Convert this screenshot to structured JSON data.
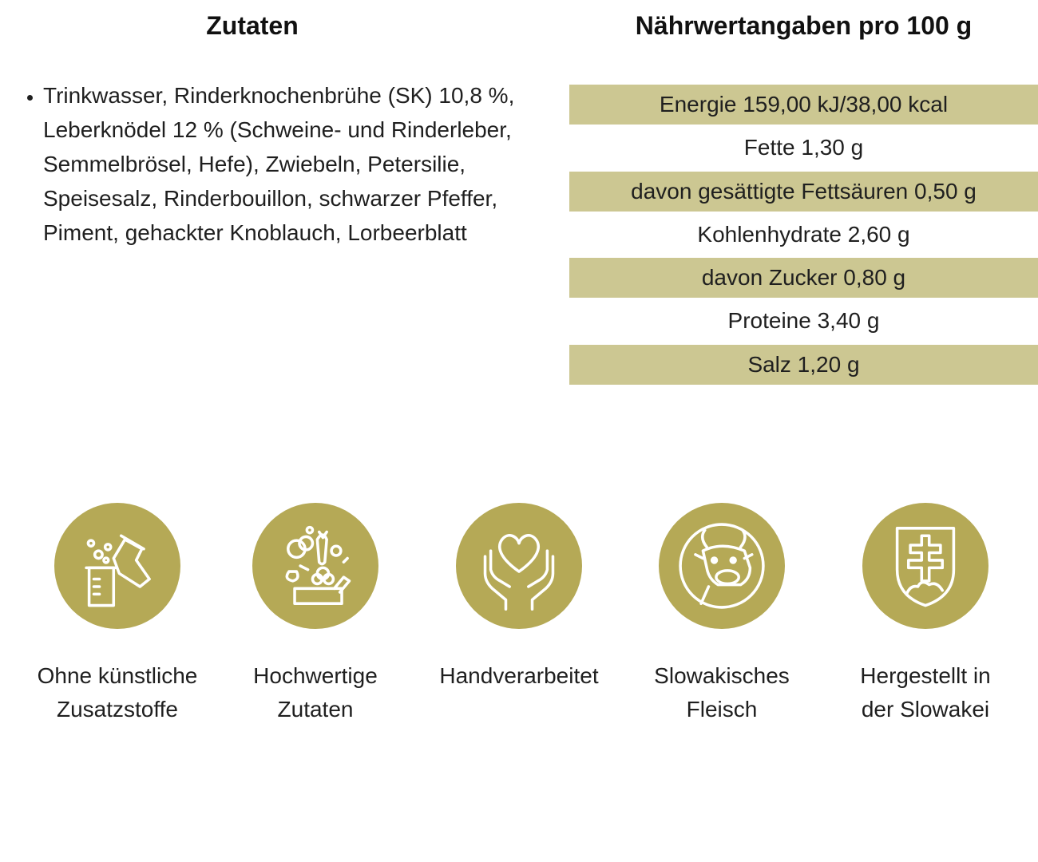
{
  "ingredients": {
    "title": "Zutaten",
    "items": [
      "Trinkwasser, Rinderknochenbrühe (SK) 10,8 %, Leberknödel 12 % (Schweine- und Rinderleber, Semmelbrösel, Hefe), Zwiebeln, Petersilie, Speisesalz, Rinderbouillon, schwarzer Pfeffer, Piment, gehackter Knoblauch, Lorbeerblatt"
    ]
  },
  "nutrition": {
    "title": "Nährwertangaben pro 100 g",
    "shade_color": "#ccc792",
    "rows": [
      "Energie 159,00 kJ/38,00 kcal",
      "Fette 1,30 g",
      "davon gesättigte Fettsäuren 0,50 g",
      "Kohlenhydrate 2,60 g",
      "davon Zucker 0,80 g",
      "Proteine 3,40 g",
      "Salz 1,20 g"
    ]
  },
  "features": {
    "circle_color": "#b5a956",
    "items": [
      {
        "icon": "lab-flask-icon",
        "label_line1": "Ohne künstliche",
        "label_line2": "Zusatzstoffe"
      },
      {
        "icon": "vegetables-icon",
        "label_line1": "Hochwertige",
        "label_line2": "Zutaten"
      },
      {
        "icon": "heart-hands-icon",
        "label_line1": "Handverarbeitet",
        "label_line2": ""
      },
      {
        "icon": "cow-icon",
        "label_line1": "Slowakisches",
        "label_line2": "Fleisch"
      },
      {
        "icon": "slovak-shield-icon",
        "label_line1": "Hergestellt in",
        "label_line2": "der Slowakei"
      }
    ]
  }
}
